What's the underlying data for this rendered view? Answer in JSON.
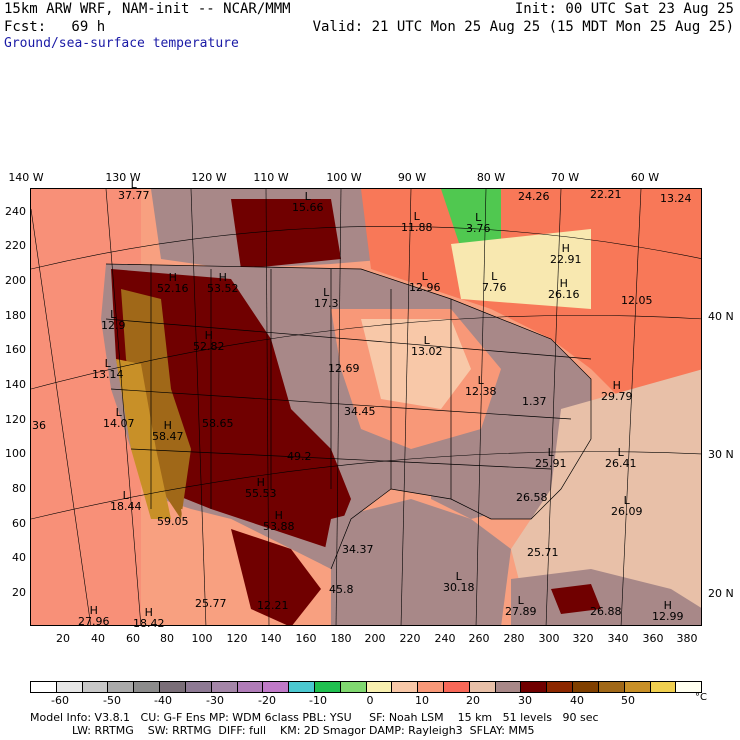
{
  "header": {
    "line1_left": "15km ARW WRF, NAM-init -- NCAR/MMM",
    "line2_left": "Fcst:   69 h",
    "line3_left": "Ground/sea-surface temperature",
    "line1_right": "Init: 00 UTC Sat 23 Aug 25",
    "line2_right": "Valid: 21 UTC Mon 25 Aug 25 (15 MDT Mon 25 Aug 25)"
  },
  "map": {
    "top_lon_labels": [
      "140 W",
      "130 W",
      "120 W",
      "110 W",
      "100 W",
      "90 W",
      "80 W",
      "70 W",
      "60 W"
    ],
    "left_y_ticks": [
      "240",
      "220",
      "200",
      "180",
      "160",
      "140",
      "120",
      "100",
      "80",
      "60",
      "40",
      "20"
    ],
    "bottom_x_ticks": [
      "20",
      "40",
      "60",
      "80",
      "100",
      "120",
      "140",
      "160",
      "180",
      "200",
      "220",
      "240",
      "260",
      "280",
      "300",
      "320",
      "340",
      "360",
      "380"
    ],
    "right_lat_labels": [
      "40 N",
      "30 N",
      "20 N"
    ],
    "annotations": [
      {
        "kind": "L",
        "value": "37.77"
      },
      {
        "kind": "L",
        "value": "15.66"
      },
      {
        "kind": "L",
        "value": "11.88"
      },
      {
        "kind": "L",
        "value": "3.76"
      },
      {
        "kind": "",
        "value": "24.26"
      },
      {
        "kind": "",
        "value": "22.21"
      },
      {
        "kind": "",
        "value": "13.24"
      },
      {
        "kind": "H",
        "value": "22.91"
      },
      {
        "kind": "H",
        "value": "52.16"
      },
      {
        "kind": "H",
        "value": "53.52"
      },
      {
        "kind": "L",
        "value": "17.3"
      },
      {
        "kind": "L",
        "value": "12.96"
      },
      {
        "kind": "L",
        "value": "7.76"
      },
      {
        "kind": "H",
        "value": "26.16"
      },
      {
        "kind": "",
        "value": "12.05"
      },
      {
        "kind": "L",
        "value": "12.9"
      },
      {
        "kind": "H",
        "value": "52.82"
      },
      {
        "kind": "L",
        "value": "13.02"
      },
      {
        "kind": "L",
        "value": "13.14"
      },
      {
        "kind": "",
        "value": "12.69"
      },
      {
        "kind": "L",
        "value": "12.38"
      },
      {
        "kind": "",
        "value": "1.37"
      },
      {
        "kind": "H",
        "value": "29.79"
      },
      {
        "kind": "",
        "value": "36"
      },
      {
        "kind": "L",
        "value": "14.07"
      },
      {
        "kind": "H",
        "value": "58.47"
      },
      {
        "kind": "",
        "value": "58.65"
      },
      {
        "kind": "",
        "value": "34.45"
      },
      {
        "kind": "",
        "value": "49.2"
      },
      {
        "kind": "L",
        "value": "25.91"
      },
      {
        "kind": "L",
        "value": "26.41"
      },
      {
        "kind": "H",
        "value": "55.53"
      },
      {
        "kind": "L",
        "value": "18.44"
      },
      {
        "kind": "",
        "value": "59.05"
      },
      {
        "kind": "H",
        "value": "53.88"
      },
      {
        "kind": "",
        "value": "26.58"
      },
      {
        "kind": "L",
        "value": "26.09"
      },
      {
        "kind": "",
        "value": "34.37"
      },
      {
        "kind": "",
        "value": "25.71"
      },
      {
        "kind": "L",
        "value": "30.18"
      },
      {
        "kind": "",
        "value": "45.8"
      },
      {
        "kind": "",
        "value": "25.77"
      },
      {
        "kind": "",
        "value": "12.21"
      },
      {
        "kind": "H",
        "value": "27.96"
      },
      {
        "kind": "H",
        "value": "18.42"
      },
      {
        "kind": "L",
        "value": "27.89"
      },
      {
        "kind": "",
        "value": "26.88"
      },
      {
        "kind": "H",
        "value": "12.99"
      }
    ]
  },
  "colorbar": {
    "unit": "°C",
    "labels": [
      "-60",
      "-50",
      "-40",
      "-30",
      "-20",
      "-10",
      "0",
      "10",
      "20",
      "30",
      "40",
      "50"
    ],
    "colors": [
      "#ffffff",
      "#e6e6e6",
      "#c8c8c8",
      "#aaaaaa",
      "#8c8c8c",
      "#7a6e78",
      "#8e7a94",
      "#a486a8",
      "#b07cb8",
      "#c07ac8",
      "#4cc8d0",
      "#20c050",
      "#80d870",
      "#f8f0b0",
      "#f8c8a8",
      "#f89878",
      "#f86858",
      "#e8c0a8",
      "#a88888",
      "#700000",
      "#8c2800",
      "#804000",
      "#a06818",
      "#c89028",
      "#f0d050",
      "#fffff0"
    ]
  },
  "footer": {
    "line1": "Model Info: V3.8.1   CU: G-F Ens MP: WDM 6class PBL: YSU     SF: Noah LSM    15 km   51 levels   90 sec",
    "line2": "            LW: RRTMG    SW: RRTMG  DIFF: full    KM: 2D Smagor DAMP: Rayleigh3  SFLAY: MM5"
  }
}
